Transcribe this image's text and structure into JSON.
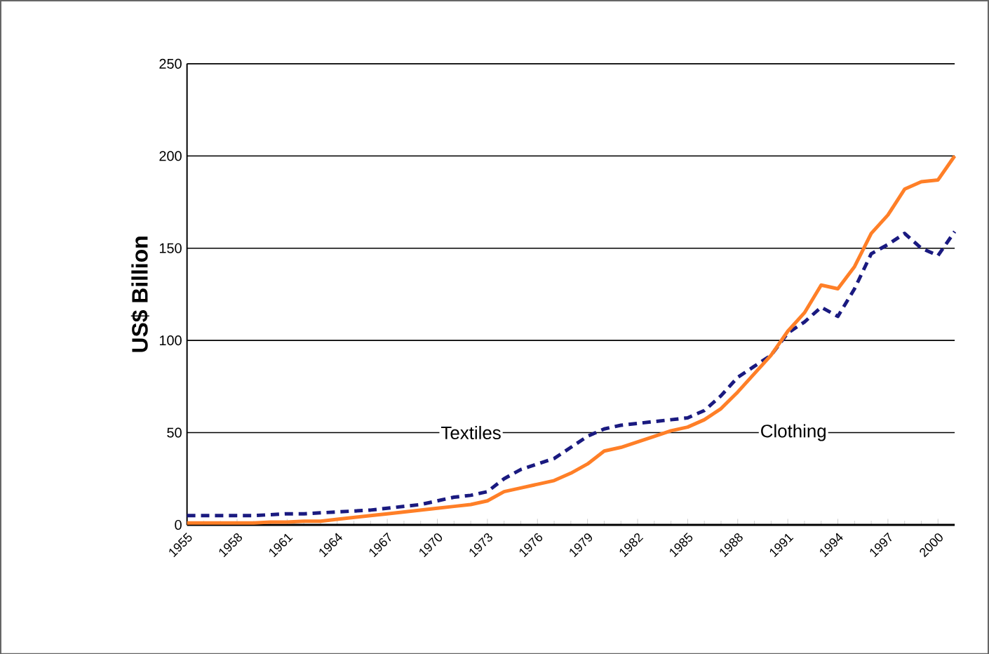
{
  "chart_data": {
    "type": "line",
    "ylabel": "US$ Billion",
    "x": [
      1955,
      1956,
      1957,
      1958,
      1959,
      1960,
      1961,
      1962,
      1963,
      1964,
      1965,
      1966,
      1967,
      1968,
      1969,
      1970,
      1971,
      1972,
      1973,
      1974,
      1975,
      1976,
      1977,
      1978,
      1979,
      1980,
      1981,
      1982,
      1983,
      1984,
      1985,
      1986,
      1987,
      1988,
      1989,
      1990,
      1991,
      1992,
      1993,
      1994,
      1995,
      1996,
      1997,
      1998,
      1999,
      2000,
      2001
    ],
    "series": [
      {
        "color": "#1a1a80",
        "line_style": "dashed",
        "values": [
          5,
          5,
          5,
          5,
          5,
          5.5,
          6,
          6,
          6.5,
          7,
          7.5,
          8,
          9,
          10,
          11,
          13,
          15,
          16,
          18,
          25,
          30,
          33,
          36,
          42,
          48,
          52,
          54,
          55,
          56,
          57,
          58,
          62,
          70,
          80,
          86,
          92,
          104,
          110,
          118,
          113,
          128,
          147,
          152,
          158,
          150,
          146,
          159
        ]
      },
      {
        "color": "#ff7f27",
        "line_style": "solid",
        "values": [
          1,
          1,
          1,
          1,
          1,
          1.5,
          1.5,
          2,
          2,
          3,
          4,
          5,
          6,
          7,
          8,
          9,
          10,
          11,
          13,
          18,
          20,
          22,
          24,
          28,
          33,
          40,
          42,
          45,
          48,
          51,
          53,
          57,
          63,
          72,
          82,
          92,
          105,
          115,
          130,
          128,
          140,
          158,
          168,
          182,
          186,
          187,
          200
        ]
      }
    ],
    "xlim": [
      1955,
      2001
    ],
    "xticks": [
      1955,
      1958,
      1961,
      1964,
      1967,
      1970,
      1973,
      1976,
      1979,
      1982,
      1985,
      1988,
      1991,
      1994,
      1997,
      2000
    ],
    "ylim": [
      0,
      250
    ],
    "yticks": [
      0,
      50,
      100,
      150,
      200,
      250
    ],
    "grid": "y",
    "annotations": [
      "Textiles",
      "Clothing"
    ]
  }
}
